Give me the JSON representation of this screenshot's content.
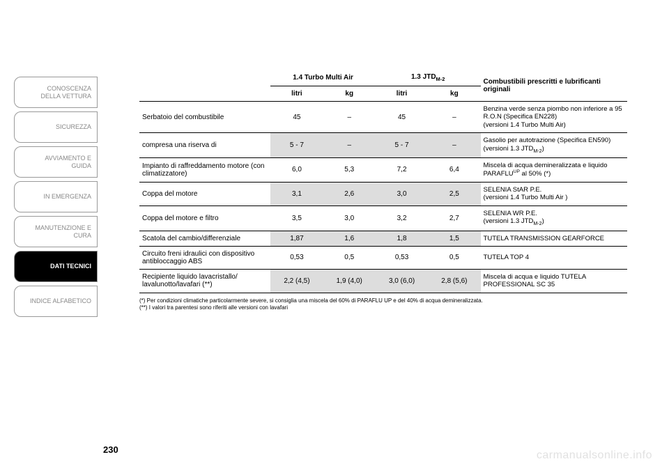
{
  "tabs": [
    {
      "label": "CONOSCENZA\nDELLA VETTURA",
      "active": false
    },
    {
      "label": "SICUREZZA",
      "active": false
    },
    {
      "label": "AVVIAMENTO E\nGUIDA",
      "active": false
    },
    {
      "label": "IN EMERGENZA",
      "active": false
    },
    {
      "label": "MANUTENZIONE E\nCURA",
      "active": false
    },
    {
      "label": "DATI TECNICI",
      "active": true
    },
    {
      "label": "INDICE ALFABETICO",
      "active": false
    }
  ],
  "page_number": "230",
  "watermark": "carmanualsonline.info",
  "table": {
    "header": {
      "engine1": "1.4 Turbo Multi Air",
      "engine2_html": "1.3 JTD<sub>M-2</sub>",
      "litri": "litri",
      "kg": "kg",
      "fuel_header": "Combustibili prescritti e lubrificanti originali"
    },
    "rows": [
      {
        "label": "Serbatoio del combustibile",
        "e1_l": "45",
        "e1_kg": "–",
        "e2_l": "45",
        "e2_kg": "–",
        "fuel_html": "Benzina verde senza piombo non inferiore a 95 R.O.N (Specifica EN228)<br>(versioni 1.4 Turbo Multi Air)",
        "alt": false
      },
      {
        "label": "compresa una riserva di",
        "e1_l": "5 - 7",
        "e1_kg": "–",
        "e2_l": "5 - 7",
        "e2_kg": "–",
        "fuel_html": "Gasolio per autotrazione (Specifica EN590)<br>(versioni 1.3 JTD<sub>M-2</sub>)",
        "alt": true
      },
      {
        "label": "Impianto di raffreddamento motore (con climatizzatore)",
        "e1_l": "6,0",
        "e1_kg": "5,3",
        "e2_l": "7,2",
        "e2_kg": "6,4",
        "fuel_html": "Miscela di acqua demineralizzata e liquido PARAFLU<sup>UP</sup> al 50% (*)",
        "alt": false
      },
      {
        "label": "Coppa del motore",
        "e1_l": "3,1",
        "e1_kg": "2,6",
        "e2_l": "3,0",
        "e2_kg": "2,5",
        "fuel_html": "SELENIA StAR P.E.<br>(versioni 1.4 Turbo Multi Air )",
        "alt": true
      },
      {
        "label": "Coppa del motore e filtro",
        "e1_l": "3,5",
        "e1_kg": "3,0",
        "e2_l": "3,2",
        "e2_kg": "2,7",
        "fuel_html": "SELENIA WR P.E.<br>(versioni 1.3 JTD<sub>M-2</sub>)",
        "alt": false
      },
      {
        "label": "Scatola del cambio/differenziale",
        "e1_l": "1,87",
        "e1_kg": "1,6",
        "e2_l": "1,8",
        "e2_kg": "1,5",
        "fuel_html": "TUTELA TRANSMISSION GEARFORCE",
        "alt": true
      },
      {
        "label": "Circuito freni idraulici con dispositivo antibloccaggio ABS",
        "e1_l": "0,53",
        "e1_kg": "0,5",
        "e2_l": "0,53",
        "e2_kg": "0,5",
        "fuel_html": "TUTELA TOP 4",
        "alt": false
      },
      {
        "label": "Recipiente liquido lavacristallo/ lavalunotto/lavafari (**)",
        "e1_l": "2,2 (4,5)",
        "e1_kg": "1,9 (4,0)",
        "e2_l": "3,0 (6,0)",
        "e2_kg": "2,8 (5,6)",
        "fuel_html": "Miscela di acqua e liquido TUTELA PROFESSIONAL SC 35",
        "alt": true
      }
    ],
    "footnotes": [
      "(*) Per condizioni climatiche particolarmente severe, si consiglia una miscela del 60% di PARAFLU UP e del 40% di acqua demineralizzata.",
      "(**) I valori tra parentesi sono riferiti alle versioni con lavafari"
    ]
  },
  "colors": {
    "text": "#000000",
    "muted_tab": "#888888",
    "active_tab_bg": "#000000",
    "active_tab_fg": "#ffffff",
    "alt_row_bg": "#dddddd",
    "border": "#000000",
    "watermark": "rgba(0,0,0,0.12)"
  }
}
